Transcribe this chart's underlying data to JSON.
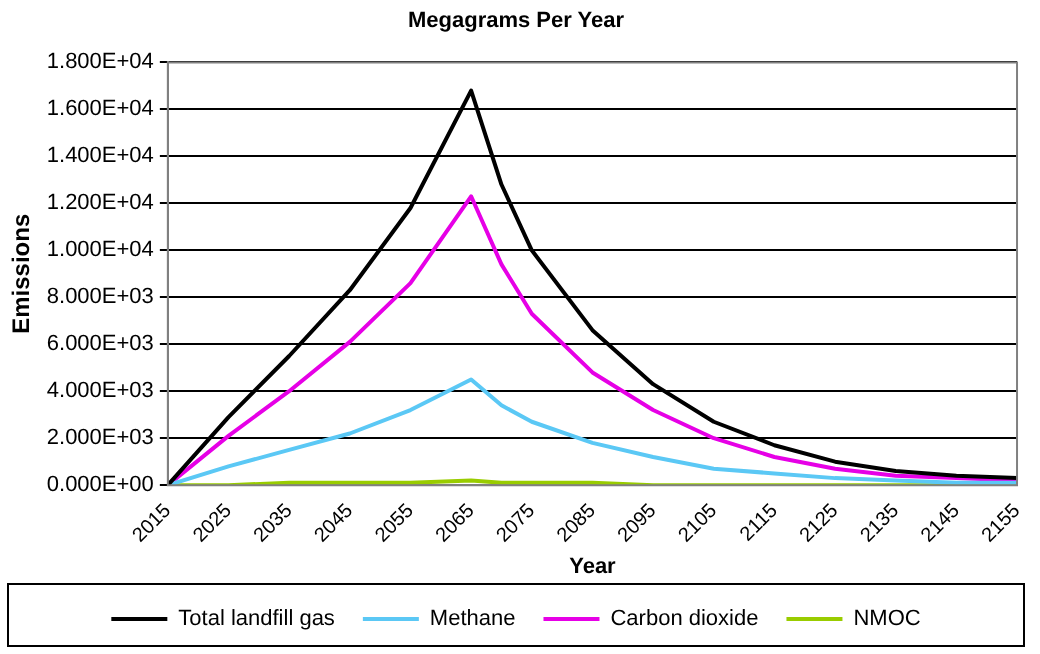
{
  "chart_data": {
    "type": "line",
    "title": "Megagrams Per Year",
    "xlabel": "Year",
    "ylabel": "Emissions",
    "x": [
      2015,
      2025,
      2035,
      2045,
      2055,
      2065,
      2070,
      2075,
      2085,
      2095,
      2105,
      2115,
      2125,
      2135,
      2145,
      2155
    ],
    "series": [
      {
        "name": "Total landfill gas",
        "color": "#000000",
        "values": [
          0,
          2900,
          5500,
          8300,
          11800,
          16800,
          12800,
          10000,
          6600,
          4300,
          2700,
          1700,
          1000,
          600,
          400,
          300
        ]
      },
      {
        "name": "Methane",
        "color": "#5bc8f5",
        "values": [
          0,
          800,
          1500,
          2200,
          3200,
          4500,
          3400,
          2700,
          1800,
          1200,
          700,
          500,
          300,
          200,
          100,
          100
        ]
      },
      {
        "name": "Carbon dioxide",
        "color": "#e600e6",
        "values": [
          0,
          2100,
          4000,
          6100,
          8600,
          12300,
          9400,
          7300,
          4800,
          3200,
          2000,
          1200,
          700,
          400,
          300,
          200
        ]
      },
      {
        "name": "NMOC",
        "color": "#99cc00",
        "values": [
          0,
          0,
          100,
          100,
          100,
          200,
          100,
          100,
          100,
          0,
          0,
          0,
          0,
          0,
          0,
          0
        ]
      }
    ],
    "xlim": [
      2015,
      2155
    ],
    "xticks": [
      2015,
      2025,
      2035,
      2045,
      2055,
      2065,
      2075,
      2085,
      2095,
      2105,
      2115,
      2125,
      2135,
      2145,
      2155
    ],
    "ylim": [
      0,
      18000
    ],
    "yticks": [
      {
        "value": 0,
        "label": "0.000E+00"
      },
      {
        "value": 2000,
        "label": "2.000E+03"
      },
      {
        "value": 4000,
        "label": "4.000E+03"
      },
      {
        "value": 6000,
        "label": "6.000E+03"
      },
      {
        "value": 8000,
        "label": "8.000E+03"
      },
      {
        "value": 10000,
        "label": "1.000E+04"
      },
      {
        "value": 12000,
        "label": "1.200E+04"
      },
      {
        "value": 14000,
        "label": "1.400E+04"
      },
      {
        "value": 16000,
        "label": "1.600E+04"
      },
      {
        "value": 18000,
        "label": "1.800E+04"
      }
    ],
    "grid": "y",
    "legend": "bottom",
    "marker": "none",
    "line_style": "solid"
  }
}
